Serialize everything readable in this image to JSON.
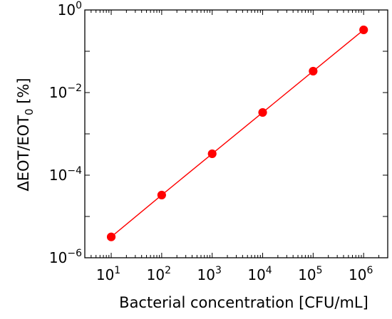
{
  "chart_data": {
    "type": "line",
    "title": "",
    "xlabel": "Bacterial concentration [CFU/mL]",
    "ylabel": {
      "prefix": "ΔEOT/EOT",
      "subscript": "0",
      "suffix": " [%]"
    },
    "x_scale": "log",
    "y_scale": "log",
    "xlim": [
      3,
      3000000
    ],
    "ylim": [
      1e-06,
      1
    ],
    "x_ticks": [
      {
        "value": 10,
        "base": "10",
        "exp": "1"
      },
      {
        "value": 100,
        "base": "10",
        "exp": "2"
      },
      {
        "value": 1000,
        "base": "10",
        "exp": "3"
      },
      {
        "value": 10000,
        "base": "10",
        "exp": "4"
      },
      {
        "value": 100000,
        "base": "10",
        "exp": "5"
      },
      {
        "value": 1000000,
        "base": "10",
        "exp": "6"
      }
    ],
    "y_ticks": [
      {
        "value": 1e-06,
        "base": "10",
        "exp": "−6"
      },
      {
        "value": 0.0001,
        "base": "10",
        "exp": "−4"
      },
      {
        "value": 0.01,
        "base": "10",
        "exp": "−2"
      },
      {
        "value": 1,
        "base": "10",
        "exp": "0"
      }
    ],
    "grid": false,
    "series": [
      {
        "color": "#ff0000",
        "marker": "circle",
        "x": [
          10,
          100,
          1000,
          10000,
          100000,
          1000000
        ],
        "y": [
          3.2e-06,
          3.3e-05,
          0.00033,
          0.0033,
          0.033,
          0.33
        ]
      }
    ]
  }
}
